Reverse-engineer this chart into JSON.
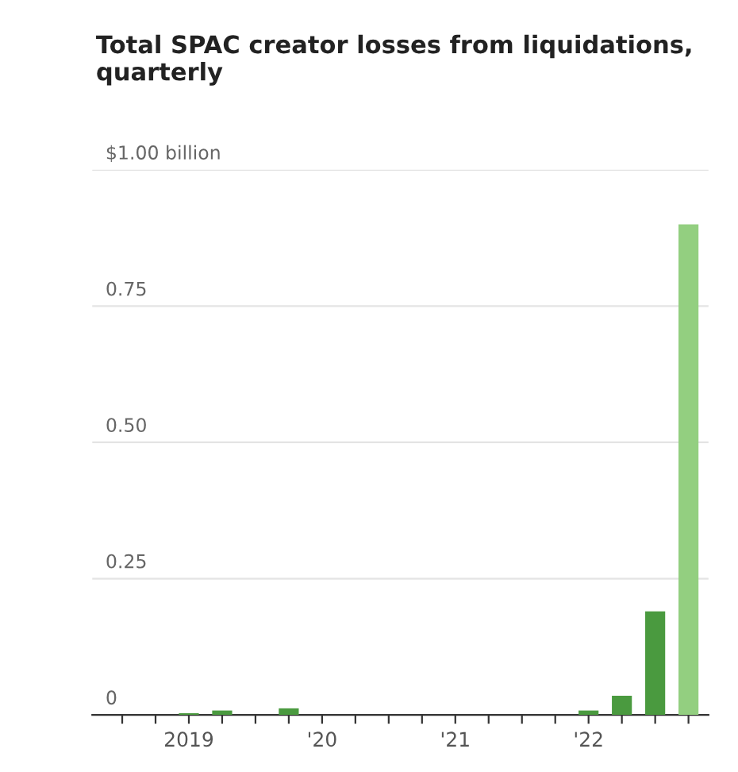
{
  "chart_data": {
    "type": "bar",
    "title": "Total SPAC creator losses from liquidations, quarterly",
    "categories": [
      null,
      null,
      "2019",
      null,
      null,
      null,
      "'20",
      null,
      null,
      null,
      "'21",
      null,
      null,
      null,
      "'22",
      null,
      null,
      null
    ],
    "values": [
      0,
      0,
      0.003,
      0.008,
      0,
      0.012,
      0,
      0,
      0,
      0,
      0,
      0,
      0,
      0,
      0.008,
      0.035,
      0.19,
      0.9
    ],
    "colors": [
      "#4a9a3f",
      "#4a9a3f",
      "#4a9a3f",
      "#4a9a3f",
      "#4a9a3f",
      "#4a9a3f",
      "#4a9a3f",
      "#4a9a3f",
      "#4a9a3f",
      "#4a9a3f",
      "#4a9a3f",
      "#4a9a3f",
      "#4a9a3f",
      "#4a9a3f",
      "#4a9a3f",
      "#4a9a3f",
      "#4a9a3f",
      "#93cf80"
    ],
    "ylim": [
      0,
      1.0
    ],
    "yticks": [
      {
        "value": 0,
        "label": "0"
      },
      0.25,
      {
        "value": 0.5,
        "label": "0.50"
      },
      0.75,
      {
        "value": 1.0,
        "label": "$1.00 billion"
      }
    ],
    "grid": "y"
  }
}
